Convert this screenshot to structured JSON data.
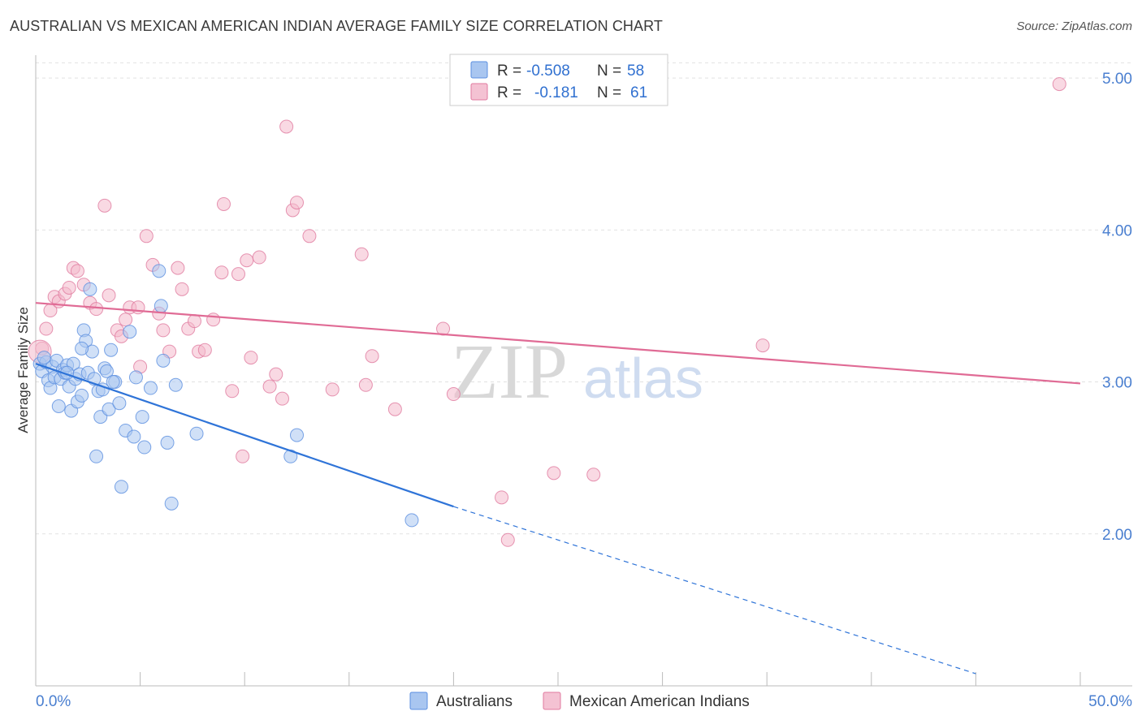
{
  "title": "AUSTRALIAN VS MEXICAN AMERICAN INDIAN AVERAGE FAMILY SIZE CORRELATION CHART",
  "source": "Source: ZipAtlas.com",
  "watermark": {
    "zip": "ZIP",
    "atlas": "atlas"
  },
  "colors": {
    "blue": "#5b8fe0",
    "blue_fill": "#a9c6f0",
    "blue_line": "#2f74d8",
    "pink": "#e07a9f",
    "pink_fill": "#f4b9cc",
    "pink_line": "#e06b95",
    "accent_text": "#4a7fd0"
  },
  "legend_stats": [
    {
      "r_label": "R =",
      "r_value": "-0.508",
      "n_label": "N =",
      "n_value": "58"
    },
    {
      "r_label": "R =",
      "r_value": "-0.181",
      "n_label": "N =",
      "n_value": "61"
    }
  ],
  "chart_data": {
    "type": "scatter",
    "title": "AUSTRALIAN VS MEXICAN AMERICAN INDIAN AVERAGE FAMILY SIZE CORRELATION CHART",
    "xlabel": "",
    "ylabel": "Average Family Size",
    "xlim": [
      0,
      50
    ],
    "ylim": [
      1.0,
      5.15
    ],
    "x_tick_labels": [
      "0.0%",
      "50.0%"
    ],
    "y_ticks": [
      2.0,
      3.0,
      4.0,
      5.0
    ],
    "y_tick_labels": [
      "2.00",
      "3.00",
      "4.00",
      "5.00"
    ],
    "grid": true,
    "legend_position": "bottom-center",
    "series": [
      {
        "name": "Australians",
        "color": "#5b8fe0",
        "trend": {
          "x0": 0,
          "y0": 3.12,
          "x1": 20,
          "y1": 2.18,
          "x_dash_end": 45,
          "y_dash_end": 1.08
        },
        "points": [
          [
            0.2,
            3.12
          ],
          [
            0.3,
            3.07
          ],
          [
            0.5,
            3.13
          ],
          [
            0.6,
            3.01
          ],
          [
            0.7,
            2.96
          ],
          [
            0.8,
            3.1
          ],
          [
            0.9,
            3.03
          ],
          [
            1.0,
            3.14
          ],
          [
            1.1,
            2.84
          ],
          [
            1.2,
            3.02
          ],
          [
            1.3,
            3.08
          ],
          [
            1.4,
            3.06
          ],
          [
            1.5,
            3.11
          ],
          [
            1.6,
            2.97
          ],
          [
            1.7,
            2.81
          ],
          [
            1.8,
            3.12
          ],
          [
            1.9,
            3.02
          ],
          [
            2.0,
            2.87
          ],
          [
            2.1,
            3.05
          ],
          [
            2.2,
            2.91
          ],
          [
            2.3,
            3.34
          ],
          [
            2.4,
            3.27
          ],
          [
            2.5,
            3.06
          ],
          [
            2.6,
            3.61
          ],
          [
            2.7,
            3.2
          ],
          [
            2.8,
            3.02
          ],
          [
            2.9,
            2.51
          ],
          [
            3.0,
            2.94
          ],
          [
            3.1,
            2.77
          ],
          [
            3.2,
            2.95
          ],
          [
            3.3,
            3.09
          ],
          [
            3.4,
            3.07
          ],
          [
            3.5,
            2.82
          ],
          [
            3.6,
            3.21
          ],
          [
            3.8,
            3.0
          ],
          [
            4.0,
            2.86
          ],
          [
            4.1,
            2.31
          ],
          [
            4.3,
            2.68
          ],
          [
            4.5,
            3.33
          ],
          [
            4.7,
            2.64
          ],
          [
            4.8,
            3.03
          ],
          [
            5.1,
            2.77
          ],
          [
            5.2,
            2.57
          ],
          [
            5.5,
            2.96
          ],
          [
            5.9,
            3.73
          ],
          [
            6.0,
            3.5
          ],
          [
            6.1,
            3.14
          ],
          [
            6.3,
            2.6
          ],
          [
            6.5,
            2.2
          ],
          [
            6.7,
            2.98
          ],
          [
            7.7,
            2.66
          ],
          [
            12.2,
            2.51
          ],
          [
            12.5,
            2.65
          ],
          [
            18.0,
            2.09
          ],
          [
            0.4,
            3.16
          ],
          [
            1.5,
            3.06
          ],
          [
            2.2,
            3.22
          ],
          [
            3.7,
            3.0
          ]
        ]
      },
      {
        "name": "Mexican American Indians",
        "color": "#e07a9f",
        "trend": {
          "x0": 0,
          "y0": 3.52,
          "x1": 50,
          "y1": 2.99
        },
        "points": [
          [
            0.3,
            3.22
          ],
          [
            0.5,
            3.35
          ],
          [
            0.7,
            3.47
          ],
          [
            0.9,
            3.56
          ],
          [
            1.1,
            3.53
          ],
          [
            1.4,
            3.58
          ],
          [
            1.6,
            3.62
          ],
          [
            1.8,
            3.75
          ],
          [
            2.0,
            3.73
          ],
          [
            2.3,
            3.64
          ],
          [
            2.6,
            3.52
          ],
          [
            2.9,
            3.48
          ],
          [
            3.3,
            4.16
          ],
          [
            3.5,
            3.57
          ],
          [
            3.9,
            3.34
          ],
          [
            4.1,
            3.3
          ],
          [
            4.3,
            3.41
          ],
          [
            4.5,
            3.49
          ],
          [
            4.9,
            3.49
          ],
          [
            5.0,
            3.1
          ],
          [
            5.3,
            3.96
          ],
          [
            5.6,
            3.77
          ],
          [
            5.9,
            3.45
          ],
          [
            6.1,
            3.34
          ],
          [
            6.4,
            3.2
          ],
          [
            6.8,
            3.75
          ],
          [
            7.0,
            3.61
          ],
          [
            7.3,
            3.35
          ],
          [
            7.6,
            3.4
          ],
          [
            7.8,
            3.2
          ],
          [
            8.1,
            3.21
          ],
          [
            8.5,
            3.41
          ],
          [
            8.9,
            3.72
          ],
          [
            9.0,
            4.17
          ],
          [
            9.4,
            2.94
          ],
          [
            9.7,
            3.71
          ],
          [
            9.9,
            2.51
          ],
          [
            10.1,
            3.8
          ],
          [
            10.3,
            3.16
          ],
          [
            10.7,
            3.82
          ],
          [
            11.2,
            2.97
          ],
          [
            11.5,
            3.05
          ],
          [
            11.8,
            2.89
          ],
          [
            12.0,
            4.68
          ],
          [
            12.3,
            4.13
          ],
          [
            12.5,
            4.18
          ],
          [
            13.1,
            3.96
          ],
          [
            14.2,
            2.95
          ],
          [
            15.6,
            3.84
          ],
          [
            15.8,
            2.98
          ],
          [
            16.1,
            3.17
          ],
          [
            17.2,
            2.82
          ],
          [
            19.5,
            3.35
          ],
          [
            20.0,
            2.92
          ],
          [
            22.3,
            2.24
          ],
          [
            22.6,
            1.96
          ],
          [
            24.8,
            2.4
          ],
          [
            26.7,
            2.39
          ],
          [
            34.8,
            3.24
          ],
          [
            49.0,
            4.96
          ],
          [
            0.2,
            3.2
          ]
        ]
      }
    ]
  },
  "legend": [
    {
      "label": "Australians",
      "color": "#a9c6f0",
      "border": "#5b8fe0"
    },
    {
      "label": "Mexican American Indians",
      "color": "#f4c2d3",
      "border": "#e07a9f"
    }
  ]
}
